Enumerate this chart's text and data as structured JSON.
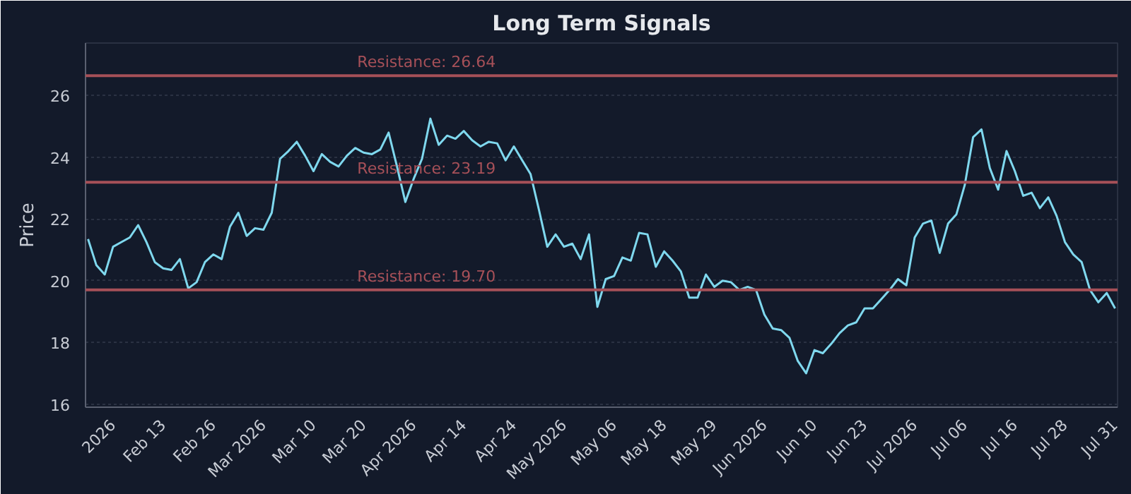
{
  "chart_data": {
    "type": "line",
    "title": "Long Term Signals",
    "ylabel": "Price",
    "categories": [
      null,
      null,
      null,
      "2026",
      null,
      null,
      null,
      null,
      null,
      "Feb 13",
      null,
      null,
      null,
      null,
      null,
      "Feb 26",
      null,
      null,
      null,
      null,
      null,
      "Mar 2026",
      null,
      null,
      null,
      null,
      null,
      "Mar 10",
      null,
      null,
      null,
      null,
      null,
      "Mar 20",
      null,
      null,
      null,
      null,
      null,
      "Apr 2026",
      null,
      null,
      null,
      null,
      null,
      "Apr 14",
      null,
      null,
      null,
      null,
      null,
      "Apr 24",
      null,
      null,
      null,
      null,
      null,
      "May 2026",
      null,
      null,
      null,
      null,
      null,
      "May 06",
      null,
      null,
      null,
      null,
      null,
      "May 18",
      null,
      null,
      null,
      null,
      null,
      "May 29",
      null,
      null,
      null,
      null,
      null,
      "Jun 2026",
      null,
      null,
      null,
      null,
      null,
      "Jun 10",
      null,
      null,
      null,
      null,
      null,
      "Jun 23",
      null,
      null,
      null,
      null,
      null,
      "Jul 2026",
      null,
      null,
      null,
      null,
      null,
      "Jul 06",
      null,
      null,
      null,
      null,
      null,
      "Jul 16",
      null,
      null,
      null,
      null,
      null,
      "Jul 28",
      null,
      null,
      null,
      null,
      null,
      "Jul 31"
    ],
    "series": [
      {
        "color": "#7fd8ee",
        "values": [
          21.35,
          20.5,
          20.2,
          21.1,
          21.25,
          21.4,
          21.8,
          21.25,
          20.6,
          20.4,
          20.35,
          20.7,
          19.75,
          19.95,
          20.6,
          20.85,
          20.7,
          21.75,
          22.2,
          21.45,
          21.7,
          21.65,
          22.2,
          23.95,
          24.2,
          24.5,
          24.05,
          23.55,
          24.1,
          23.85,
          23.7,
          24.05,
          24.3,
          24.15,
          24.1,
          24.25,
          24.8,
          23.7,
          22.55,
          23.3,
          23.95,
          25.25,
          24.4,
          24.7,
          24.6,
          24.85,
          24.55,
          24.35,
          24.5,
          24.45,
          23.9,
          24.35,
          23.9,
          23.45,
          22.3,
          21.1,
          21.5,
          21.1,
          21.2,
          20.7,
          21.5,
          19.15,
          20.05,
          20.15,
          20.75,
          20.65,
          21.55,
          21.5,
          20.45,
          20.95,
          20.65,
          20.3,
          19.45,
          19.45,
          20.2,
          19.8,
          20.0,
          19.95,
          19.7,
          19.8,
          19.7,
          18.9,
          18.45,
          18.4,
          18.15,
          17.4,
          17.0,
          17.75,
          17.65,
          17.95,
          18.3,
          18.55,
          18.65,
          19.1,
          19.1,
          19.4,
          19.7,
          20.05,
          19.85,
          21.4,
          21.85,
          21.95,
          20.9,
          21.85,
          22.15,
          23.1,
          24.65,
          24.9,
          23.65,
          22.95,
          24.2,
          23.55,
          22.75,
          22.85,
          22.35,
          22.7,
          22.1,
          21.25,
          20.85,
          20.6,
          19.7,
          19.3,
          19.6,
          19.1
        ]
      }
    ],
    "ylim": [
      15.9,
      27.7
    ],
    "yticks": [
      16,
      18,
      20,
      22,
      24,
      26
    ],
    "grid": "y",
    "line_style": "solid",
    "marker": "none",
    "ref_lines": [
      {
        "axis": "y",
        "value": 26.64,
        "label": "Resistance: 26.64",
        "color": "#a65058"
      },
      {
        "axis": "y",
        "value": 23.19,
        "label": "Resistance: 23.19",
        "color": "#a65058"
      },
      {
        "axis": "y",
        "value": 19.7,
        "label": "Resistance: 19.70",
        "color": "#a65058"
      }
    ]
  }
}
